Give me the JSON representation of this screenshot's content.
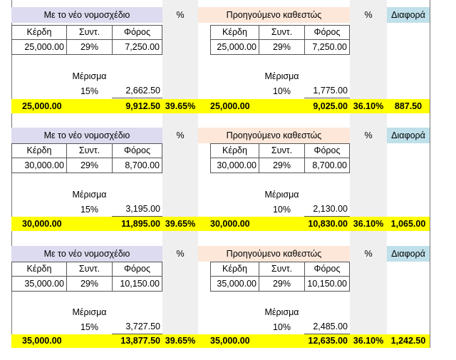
{
  "headers": {
    "new_regime": "Με το νέο νομοσχέδιο",
    "old_regime": "Προηγούμενο καθεστώς",
    "percent": "%",
    "difference": "Διαφορά",
    "profits": "Κέρδη",
    "rate": "Συντ.",
    "tax": "Φόρος",
    "dividend": "Μέρισμα"
  },
  "blocks": [
    {
      "new": {
        "profits": "25,000.00",
        "rate": "29%",
        "tax": "7,250.00",
        "div_rate": "15%",
        "div_tax": "2,662.50"
      },
      "old": {
        "profits": "25,000.00",
        "rate": "29%",
        "tax": "7,250.00",
        "div_rate": "10%",
        "div_tax": "1,775.00"
      },
      "totals": {
        "new_profits": "25,000.00",
        "new_tax": "9,912.50",
        "new_pct": "39.65%",
        "old_profits": "25,000.00",
        "old_tax": "9,025.00",
        "old_pct": "36.10%",
        "diff": "887.50"
      }
    },
    {
      "new": {
        "profits": "30,000.00",
        "rate": "29%",
        "tax": "8,700.00",
        "div_rate": "15%",
        "div_tax": "3,195.00"
      },
      "old": {
        "profits": "30,000.00",
        "rate": "29%",
        "tax": "8,700.00",
        "div_rate": "10%",
        "div_tax": "2,130.00"
      },
      "totals": {
        "new_profits": "30,000.00",
        "new_tax": "11,895.00",
        "new_pct": "39.65%",
        "old_profits": "30,000.00",
        "old_tax": "10,830.00",
        "old_pct": "36.10%",
        "diff": "1,065.00"
      }
    },
    {
      "new": {
        "profits": "35,000.00",
        "rate": "29%",
        "tax": "10,150.00",
        "div_rate": "15%",
        "div_tax": "3,727.50"
      },
      "old": {
        "profits": "35,000.00",
        "rate": "29%",
        "tax": "10,150.00",
        "div_rate": "10%",
        "div_tax": "2,485.00"
      },
      "totals": {
        "new_profits": "35,000.00",
        "new_tax": "13,877.50",
        "new_pct": "39.65%",
        "old_profits": "35,000.00",
        "old_tax": "12,635.00",
        "old_pct": "36.10%",
        "diff": "1,242.50"
      }
    }
  ]
}
